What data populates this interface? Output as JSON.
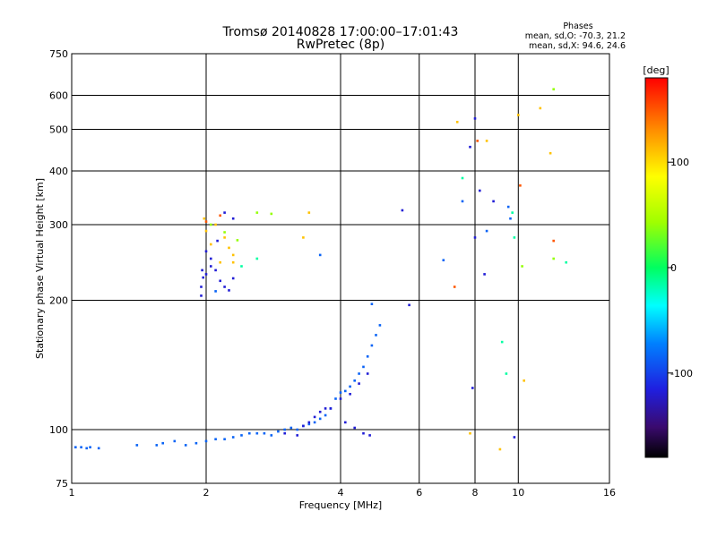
{
  "chart_data": {
    "type": "scatter",
    "title": "Tromsø 20140828 17:00:00–17:01:43",
    "subtitle": "RwPretec (8p)",
    "xlabel": "Frequency [MHz]",
    "ylabel": "Stationary phase Virtual Height [km]",
    "x_scale": "log",
    "y_scale": "log",
    "xlim": [
      1,
      16
    ],
    "ylim": [
      75,
      750
    ],
    "x_ticks": [
      "1",
      "2",
      "4",
      "6",
      "8",
      "10",
      "16"
    ],
    "x_tick_values": [
      1,
      2,
      4,
      6,
      8,
      10,
      16
    ],
    "y_ticks": [
      "75",
      "100",
      "200",
      "300",
      "400",
      "500",
      "600",
      "750"
    ],
    "y_tick_values": [
      75,
      100,
      200,
      300,
      400,
      500,
      600,
      750
    ],
    "grid": true,
    "phase_info": {
      "title": "Phases",
      "line_o": "mean, sd,O: -70.3, 21.2",
      "line_x": "mean, sd,X:  94.6, 24.6"
    },
    "colorbar": {
      "label": "[deg]",
      "range": [
        -180,
        180
      ],
      "ticks": [
        "100",
        "0",
        "-100"
      ],
      "tick_values": [
        100,
        0,
        -100
      ]
    },
    "series": [
      {
        "phase": -85,
        "points": [
          [
            1.02,
            91
          ],
          [
            1.05,
            91
          ],
          [
            1.08,
            90.5
          ],
          [
            1.1,
            91
          ],
          [
            1.15,
            90.5
          ],
          [
            1.4,
            92
          ],
          [
            1.55,
            92
          ],
          [
            1.6,
            93
          ],
          [
            1.7,
            94
          ],
          [
            1.8,
            92
          ],
          [
            1.9,
            93
          ],
          [
            2.0,
            94
          ],
          [
            2.1,
            95
          ],
          [
            2.2,
            95
          ],
          [
            2.3,
            96
          ],
          [
            2.4,
            97
          ],
          [
            2.5,
            98
          ],
          [
            2.6,
            98
          ],
          [
            2.7,
            98
          ],
          [
            2.8,
            97
          ],
          [
            2.9,
            99
          ],
          [
            3.0,
            100
          ],
          [
            3.1,
            101
          ],
          [
            3.2,
            100
          ],
          [
            3.3,
            102
          ],
          [
            3.4,
            103
          ],
          [
            3.5,
            104
          ],
          [
            3.6,
            106
          ],
          [
            3.7,
            108
          ],
          [
            3.8,
            112
          ],
          [
            3.9,
            118
          ],
          [
            4.0,
            122
          ],
          [
            4.1,
            123
          ],
          [
            4.2,
            126
          ],
          [
            4.3,
            130
          ],
          [
            4.4,
            135
          ],
          [
            4.5,
            140
          ],
          [
            4.6,
            148
          ],
          [
            4.7,
            157
          ],
          [
            4.8,
            166
          ],
          [
            4.9,
            175
          ],
          [
            9.5,
            330
          ],
          [
            9.6,
            310
          ],
          [
            7.5,
            340
          ],
          [
            8.5,
            290
          ],
          [
            6.8,
            248
          ],
          [
            2.1,
            210
          ],
          [
            3.6,
            255
          ],
          [
            4.7,
            196
          ]
        ]
      },
      {
        "phase": -118,
        "points": [
          [
            1.95,
            205
          ],
          [
            1.95,
            215
          ],
          [
            1.97,
            226
          ],
          [
            2.0,
            230
          ],
          [
            2.05,
            240
          ],
          [
            2.1,
            235
          ],
          [
            2.15,
            222
          ],
          [
            2.2,
            215
          ],
          [
            2.25,
            211
          ],
          [
            2.3,
            225
          ],
          [
            2.05,
            250
          ],
          [
            1.96,
            235
          ],
          [
            2.0,
            260
          ],
          [
            2.12,
            275
          ],
          [
            2.2,
            320
          ],
          [
            2.3,
            310
          ],
          [
            3.3,
            102
          ],
          [
            3.4,
            104
          ],
          [
            3.6,
            110
          ],
          [
            3.8,
            112
          ],
          [
            4.0,
            118
          ],
          [
            4.2,
            121
          ],
          [
            4.4,
            128
          ],
          [
            4.6,
            135
          ],
          [
            3.5,
            107
          ],
          [
            3.7,
            112
          ],
          [
            4.1,
            104
          ],
          [
            4.3,
            101
          ],
          [
            4.5,
            98
          ],
          [
            4.65,
            97
          ],
          [
            3.2,
            97
          ],
          [
            3.0,
            98
          ],
          [
            5.5,
            324
          ],
          [
            5.7,
            195
          ],
          [
            7.8,
            455
          ],
          [
            8.0,
            280
          ],
          [
            8.2,
            360
          ],
          [
            8.4,
            230
          ],
          [
            8.0,
            530
          ],
          [
            8.8,
            340
          ],
          [
            7.9,
            125
          ],
          [
            9.8,
            96
          ]
        ]
      },
      {
        "phase": 110,
        "points": [
          [
            1.98,
            310
          ],
          [
            2.0,
            290
          ],
          [
            2.1,
            300
          ],
          [
            2.2,
            280
          ],
          [
            2.25,
            265
          ],
          [
            2.3,
            255
          ],
          [
            2.05,
            270
          ],
          [
            2.15,
            245
          ],
          [
            2.3,
            245
          ],
          [
            3.3,
            280
          ],
          [
            3.4,
            320
          ],
          [
            7.3,
            520
          ],
          [
            8.5,
            470
          ],
          [
            10.0,
            540
          ],
          [
            11.2,
            560
          ],
          [
            10.3,
            130
          ],
          [
            11.8,
            440
          ],
          [
            9.1,
            90
          ],
          [
            7.8,
            98
          ]
        ]
      },
      {
        "phase": 40,
        "points": [
          [
            2.05,
            300
          ],
          [
            2.2,
            288
          ],
          [
            2.35,
            276
          ],
          [
            2.6,
            320
          ],
          [
            2.8,
            318
          ],
          [
            12.0,
            620
          ],
          [
            12.0,
            250
          ],
          [
            10.2,
            240
          ]
        ]
      },
      {
        "phase": 150,
        "points": [
          [
            2.0,
            305
          ],
          [
            2.15,
            315
          ],
          [
            8.1,
            470
          ],
          [
            7.2,
            215
          ],
          [
            12.0,
            275
          ],
          [
            10.1,
            370
          ]
        ]
      },
      {
        "phase": -15,
        "points": [
          [
            2.4,
            240
          ],
          [
            2.6,
            250
          ],
          [
            7.5,
            385
          ],
          [
            9.7,
            320
          ],
          [
            9.8,
            280
          ],
          [
            12.8,
            245
          ],
          [
            9.2,
            160
          ],
          [
            9.4,
            135
          ]
        ]
      }
    ]
  }
}
